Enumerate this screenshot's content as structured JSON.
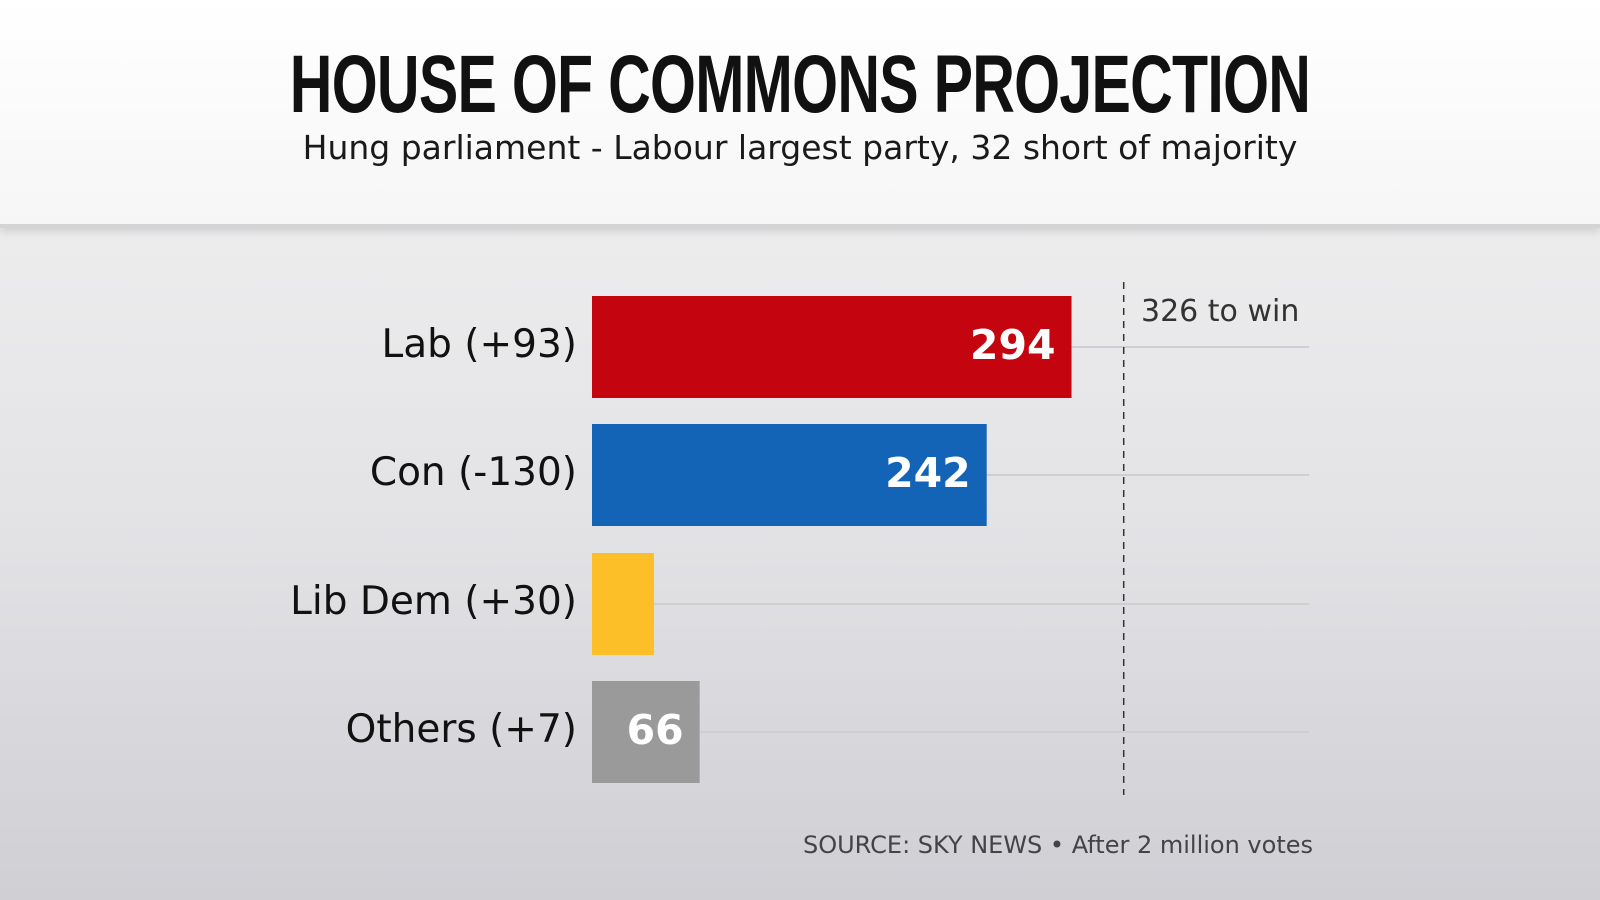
{
  "header": {
    "title": "HOUSE OF COMMONS PROJECTION",
    "subtitle": "Hung parliament - Labour largest party, 32 short of majority"
  },
  "chart_data": {
    "type": "bar",
    "orientation": "horizontal",
    "categories": [
      "Lab (+93)",
      "Con (-130)",
      "Lib Dem (+30)",
      "Others (+7)"
    ],
    "values": [
      294,
      242,
      38,
      66
    ],
    "data_labels": [
      "294",
      "242",
      "",
      "66"
    ],
    "colors": [
      "#c40510",
      "#1363b7",
      "#fdbf27",
      "#9a9a9a"
    ],
    "xlim": [
      0,
      440
    ],
    "reference_line": {
      "value": 326,
      "label": "326 to win",
      "style": "dashed"
    },
    "grid": false
  },
  "footer": {
    "source": "SOURCE: SKY NEWS • After 2 million votes"
  }
}
